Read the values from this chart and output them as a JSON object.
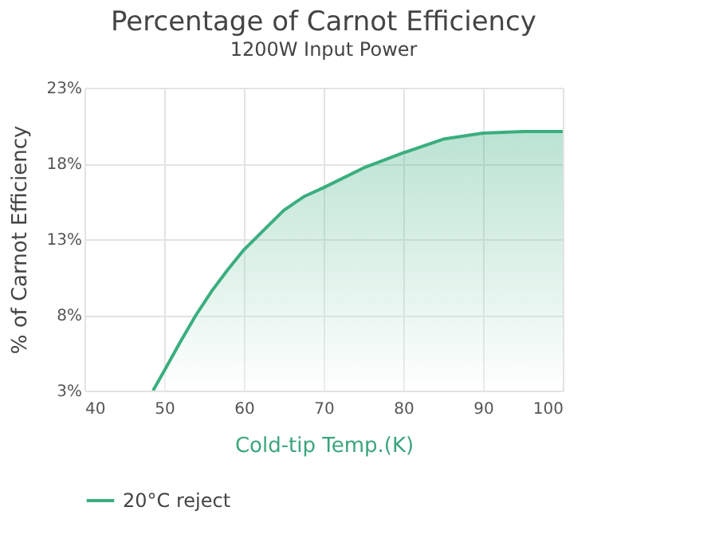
{
  "chart_data": {
    "type": "area",
    "title": "Percentage of Carnot Efficiency",
    "subtitle": "1200W Input Power",
    "xlabel": "Cold-tip Temp.(K)",
    "ylabel": "% of Carnot Efficiency",
    "x": [
      48.6,
      50,
      52,
      54,
      56,
      58,
      60,
      62.5,
      65,
      67.5,
      70,
      75,
      80,
      85,
      90,
      95,
      100
    ],
    "series": [
      {
        "name": "20°C reject",
        "color": "#3aae7e",
        "values": [
          3,
          4.3,
          6.2,
          8.0,
          9.6,
          11.0,
          12.3,
          13.6,
          14.9,
          15.8,
          16.4,
          17.7,
          18.7,
          19.6,
          20.0,
          20.1,
          20.1
        ]
      }
    ],
    "xlim": [
      40,
      100
    ],
    "xticks": [
      40,
      50,
      60,
      70,
      80,
      90,
      100
    ],
    "ylim": [
      3,
      23
    ],
    "yticks": [
      {
        "value": 3,
        "label": "3%"
      },
      {
        "value": 8,
        "label": "8%"
      },
      {
        "value": 13,
        "label": "13%"
      },
      {
        "value": 18,
        "label": "18%"
      },
      {
        "value": 23,
        "label": "23%"
      }
    ],
    "grid": true,
    "legend": "bottom",
    "marker": "none",
    "line_style": "solid"
  }
}
